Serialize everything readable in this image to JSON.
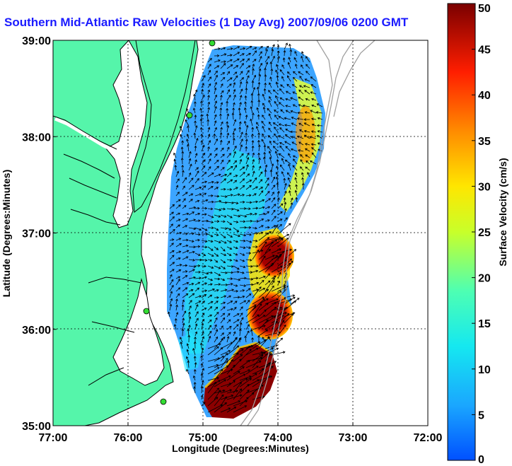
{
  "title": "Southern Mid-Atlantic Raw Velocities (1 Day Avg) 2007/09/06 0200 GMT",
  "map": {
    "xlabel": "Longitude (Degrees:Minutes)",
    "ylabel": "Latitude (Degrees:Minutes)",
    "lon_ticks": [
      "77:00",
      "76:00",
      "75:00",
      "74:00",
      "73:00",
      "72:00"
    ],
    "lat_ticks": [
      "39:00",
      "38:00",
      "37:00",
      "36:00",
      "35:00"
    ],
    "lon_range": [
      -77,
      -72
    ],
    "lat_range": [
      35,
      39
    ],
    "colors": {
      "land": "#55f5aa",
      "water": "#ffffff",
      "coast": "#000000",
      "bathymetry": "#a0a0a0",
      "station": "#33dd33"
    }
  },
  "colorbar": {
    "label": "Surface Velocity (cm/s)",
    "ticks": [
      "0",
      "5",
      "10",
      "15",
      "20",
      "25",
      "30",
      "35",
      "40",
      "45",
      "50"
    ],
    "range": [
      0,
      50
    ],
    "units": "cm/s"
  }
}
